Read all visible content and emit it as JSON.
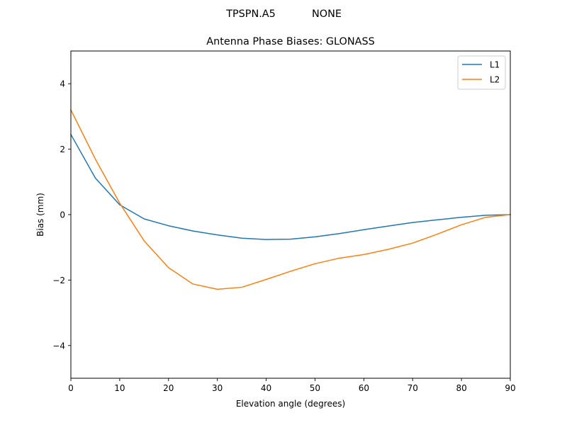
{
  "chart_data": {
    "type": "line",
    "suptitle": {
      "antenna": "TPSPN.A5",
      "radome": "NONE"
    },
    "title": "Antenna Phase Biases: GLONASS",
    "xlabel": "Elevation angle (degrees)",
    "ylabel": "Bias (mm)",
    "xlim": [
      0,
      90
    ],
    "ylim": [
      -5,
      5
    ],
    "xticks": [
      0,
      10,
      20,
      30,
      40,
      50,
      60,
      70,
      80,
      90
    ],
    "yticks": [
      -4,
      -2,
      0,
      2,
      4
    ],
    "x_tick_labels": [
      "0",
      "10",
      "20",
      "30",
      "40",
      "50",
      "60",
      "70",
      "80",
      "90"
    ],
    "y_tick_labels": [
      "−4",
      "−2",
      "0",
      "2",
      "4"
    ],
    "grid": false,
    "legend_position": "top-right",
    "x": [
      0,
      5,
      10,
      15,
      20,
      25,
      30,
      35,
      40,
      45,
      50,
      55,
      60,
      65,
      70,
      75,
      80,
      85,
      90
    ],
    "series": [
      {
        "name": "L1",
        "color": "#1f77b4",
        "values": [
          2.45,
          1.12,
          0.3,
          -0.13,
          -0.34,
          -0.5,
          -0.62,
          -0.72,
          -0.76,
          -0.75,
          -0.68,
          -0.58,
          -0.46,
          -0.35,
          -0.24,
          -0.16,
          -0.08,
          -0.02,
          0.0
        ]
      },
      {
        "name": "L2",
        "color": "#ff7f0e",
        "values": [
          3.2,
          1.7,
          0.35,
          -0.8,
          -1.62,
          -2.12,
          -2.28,
          -2.22,
          -1.98,
          -1.73,
          -1.5,
          -1.33,
          -1.22,
          -1.06,
          -0.87,
          -0.6,
          -0.31,
          -0.08,
          0.0
        ]
      }
    ]
  }
}
